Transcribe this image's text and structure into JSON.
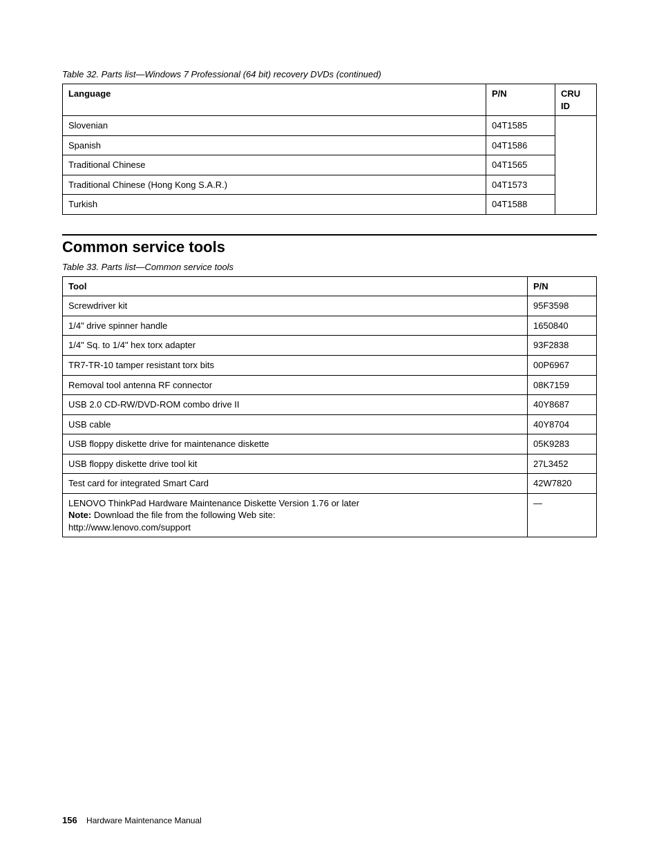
{
  "table32": {
    "caption": "Table 32.  Parts list—Windows 7 Professional (64 bit) recovery DVDs (continued)",
    "columns": [
      "Language",
      "P/N",
      "CRU ID"
    ],
    "rows": [
      {
        "language": "Slovenian",
        "pn": "04T1585",
        "cru": ""
      },
      {
        "language": "Spanish",
        "pn": "04T1586",
        "cru": ""
      },
      {
        "language": "Traditional Chinese",
        "pn": "04T1565",
        "cru": ""
      },
      {
        "language": "Traditional Chinese (Hong Kong S.A.R.)",
        "pn": "04T1573",
        "cru": ""
      },
      {
        "language": "Turkish",
        "pn": "04T1588",
        "cru": ""
      }
    ]
  },
  "section_heading": "Common service tools",
  "table33": {
    "caption": "Table 33.  Parts list—Common service tools",
    "columns": [
      "Tool",
      "P/N"
    ],
    "rows": [
      {
        "tool": "Screwdriver kit",
        "pn": "95F3598"
      },
      {
        "tool": "1/4\" drive spinner handle",
        "pn": "1650840"
      },
      {
        "tool": "1/4\" Sq. to 1/4\" hex torx adapter",
        "pn": "93F2838"
      },
      {
        "tool": "TR7-TR-10 tamper resistant torx bits",
        "pn": "00P6967"
      },
      {
        "tool": "Removal tool antenna RF connector",
        "pn": "08K7159"
      },
      {
        "tool": "USB 2.0 CD-RW/DVD-ROM combo drive II",
        "pn": "40Y8687"
      },
      {
        "tool": "USB cable",
        "pn": "40Y8704"
      },
      {
        "tool": "USB floppy diskette drive for maintenance diskette",
        "pn": "05K9283"
      },
      {
        "tool": "USB floppy diskette drive tool kit",
        "pn": "27L3452"
      },
      {
        "tool": "Test card for integrated Smart Card",
        "pn": "42W7820"
      }
    ],
    "last_row": {
      "line1": "LENOVO ThinkPad Hardware Maintenance Diskette Version 1.76 or later",
      "note_label": "Note:",
      "note_text": " Download the file from the following Web site:",
      "url": "http://www.lenovo.com/support",
      "pn": "—"
    }
  },
  "footer": {
    "page_number": "156",
    "doc_title": "Hardware Maintenance Manual"
  }
}
